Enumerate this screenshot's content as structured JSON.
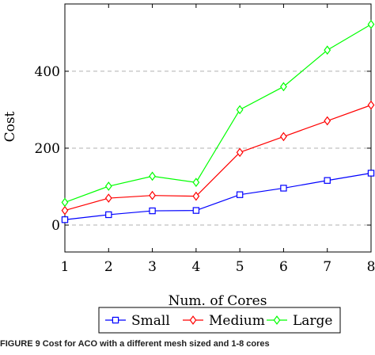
{
  "chart_data": {
    "type": "line",
    "xlabel": "Num. of Cores",
    "ylabel": "Cost",
    "x": [
      1,
      2,
      3,
      4,
      5,
      6,
      7,
      8
    ],
    "x_ticks": [
      "1",
      "2",
      "3",
      "4",
      "5",
      "6",
      "7",
      "8"
    ],
    "y_ticks": [
      "0",
      "200",
      "400"
    ],
    "xlim": [
      1,
      8
    ],
    "ylim": [
      -70,
      575
    ],
    "grid": "horizontal dashed at y ticks",
    "legend_position": "bottom-center, below axis label",
    "series": [
      {
        "name": "Small",
        "color": "#0000ff",
        "marker": "square",
        "values": [
          14,
          27,
          37,
          38,
          79,
          96,
          116,
          135
        ]
      },
      {
        "name": "Medium",
        "color": "#ff0000",
        "marker": "diamond",
        "values": [
          38,
          70,
          77,
          75,
          189,
          230,
          271,
          312
        ]
      },
      {
        "name": "Large",
        "color": "#00ff00",
        "marker": "diamond",
        "values": [
          59,
          101,
          127,
          111,
          300,
          360,
          455,
          522
        ]
      }
    ]
  },
  "caption": "FIGURE 9   Cost for ACO with a different mesh sized and 1-8 cores"
}
